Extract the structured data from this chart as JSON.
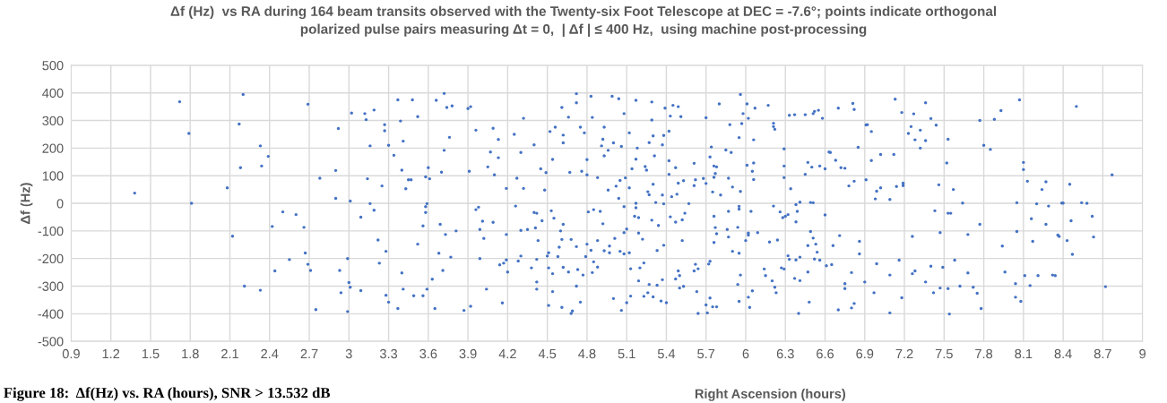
{
  "chart_data": {
    "type": "scatter",
    "title": "Δf (Hz)  vs RA during 164 beam transits observed with the Twenty-six Foot Telescope at DEC = -7.6°; points indicate orthogonal\npolarized pulse pairs measuring Δt = 0,  | Δf | ≤ 400 Hz,  using machine post-processing",
    "xlabel": "Right Ascension (hours)",
    "ylabel": "Δf (Hz)",
    "annotations": [
      "Figure 18:  Δf(Hz) vs. RA (hours), SNR > 13.532 dB"
    ],
    "color": "#4472c4",
    "marker": "circle",
    "grid": true,
    "xlim": [
      0.9,
      9
    ],
    "ylim": [
      -500,
      500
    ],
    "xticks": [
      0.9,
      1.2,
      1.5,
      1.8,
      2.1,
      2.4,
      2.7,
      3,
      3.3,
      3.6,
      3.9,
      4.2,
      4.5,
      4.8,
      5.1,
      5.4,
      5.7,
      6,
      6.3,
      6.6,
      6.9,
      7.2,
      7.5,
      7.8,
      8.1,
      8.4,
      8.7,
      9
    ],
    "yticks": [
      -500,
      -400,
      -300,
      -200,
      -100,
      0,
      100,
      200,
      300,
      400,
      500
    ],
    "x": [
      1.38,
      1.72,
      1.79,
      1.81,
      2.08,
      2.12,
      2.17,
      2.2,
      2.18,
      2.21,
      2.33,
      2.34,
      2.39,
      2.33,
      2.42,
      2.44,
      2.5,
      2.55,
      2.6,
      2.66,
      2.67,
      2.69,
      2.69,
      2.71,
      2.75,
      2.78,
      2.9,
      2.9,
      2.92,
      2.93,
      2.94,
      2.99,
      2.99,
      3.02,
      3.0,
      3.01,
      3.01,
      3.09,
      3.09,
      3.12,
      3.13,
      3.14,
      3.16,
      3.16,
      3.19,
      3.19,
      3.22,
      3.23,
      3.25,
      3.27,
      3.27,
      3.28,
      3.28,
      3.3,
      3.3,
      3.34,
      3.37,
      3.37,
      3.39,
      3.4,
      3.4,
      3.41,
      3.41,
      3.43,
      3.45,
      3.47,
      3.48,
      3.49,
      3.52,
      3.52,
      3.56,
      3.56,
      3.58,
      3.58,
      3.59,
      3.58,
      3.59,
      3.6,
      3.61,
      3.63,
      3.65,
      3.66,
      3.68,
      3.69,
      3.7,
      3.71,
      3.72,
      3.72,
      3.73,
      3.74,
      3.76,
      3.77,
      3.78,
      3.81,
      3.87,
      3.9,
      3.91,
      3.92,
      3.92,
      3.96,
      3.96,
      3.98,
      3.99,
      3.99,
      4.01,
      4.02,
      4.04,
      4.05,
      4.07,
      4.09,
      4.09,
      4.1,
      4.13,
      4.13,
      4.14,
      4.16,
      4.17,
      4.19,
      4.19,
      4.19,
      4.2,
      4.25,
      4.26,
      4.27,
      4.28,
      4.3,
      4.3,
      4.3,
      4.32,
      4.32,
      4.35,
      4.38,
      4.4,
      4.4,
      4.41,
      4.42,
      4.42,
      4.42,
      4.42,
      4.43,
      4.45,
      4.46,
      4.48,
      4.49,
      4.5,
      4.51,
      4.51,
      4.51,
      4.52,
      4.53,
      4.54,
      4.54,
      4.54,
      4.55,
      4.56,
      4.58,
      4.59,
      4.6,
      4.61,
      4.61,
      4.61,
      4.62,
      4.62,
      4.62,
      4.62,
      4.66,
      4.66,
      4.67,
      4.68,
      4.68,
      4.69,
      4.72,
      4.72,
      4.72,
      4.72,
      4.73,
      4.75,
      4.75,
      4.76,
      4.77,
      4.78,
      4.79,
      4.8,
      4.8,
      4.8,
      4.81,
      4.83,
      4.83,
      4.84,
      4.84,
      4.85,
      4.85,
      4.88,
      4.88,
      4.88,
      4.9,
      4.91,
      4.92,
      4.92,
      4.93,
      4.93,
      4.93,
      4.96,
      4.96,
      4.97,
      4.97,
      4.99,
      5.0,
      5.0,
      5.01,
      5.02,
      5.04,
      5.04,
      5.05,
      5.05,
      5.06,
      5.06,
      5.08,
      5.08,
      5.08,
      5.08,
      5.09,
      5.1,
      5.1,
      5.12,
      5.12,
      5.12,
      5.13,
      5.13,
      5.14,
      5.17,
      5.18,
      5.17,
      5.17,
      5.17,
      5.16,
      5.19,
      5.19,
      5.22,
      5.2,
      5.23,
      5.19,
      5.23,
      5.24,
      5.25,
      5.27,
      5.26,
      5.27,
      5.27,
      5.26,
      5.29,
      5.29,
      5.3,
      5.29,
      5.3,
      5.31,
      5.3,
      5.32,
      5.33,
      5.33,
      5.34,
      5.37,
      5.36,
      5.37,
      5.37,
      5.38,
      5.38,
      5.38,
      5.39,
      5.4,
      5.42,
      5.42,
      5.42,
      5.43,
      5.43,
      5.44,
      5.45,
      5.47,
      5.47,
      5.47,
      5.48,
      5.49,
      5.49,
      5.49,
      5.5,
      5.5,
      5.51,
      5.52,
      5.52,
      5.53,
      5.53,
      5.54,
      5.57,
      5.61,
      5.61,
      5.61,
      5.62,
      5.62,
      5.63,
      5.64,
      5.64,
      5.68,
      5.7,
      5.7,
      5.7,
      5.71,
      5.72,
      5.73,
      5.73,
      5.73,
      5.74,
      5.75,
      5.76,
      5.76,
      5.76,
      5.76,
      5.77,
      5.75,
      5.78,
      5.77,
      5.78,
      5.78,
      5.8,
      5.81,
      5.85,
      5.86,
      5.87,
      5.87,
      5.87,
      5.88,
      5.89,
      5.9,
      5.9,
      5.94,
      5.94,
      5.95,
      5.95,
      5.95,
      5.95,
      5.95,
      5.96,
      5.96,
      5.96,
      5.97,
      5.98,
      6.0,
      6.01,
      6.01,
      6.02,
      6.02,
      6.02,
      6.02,
      6.03,
      6.04,
      6.05,
      6.05,
      6.06,
      6.06,
      6.06,
      6.07,
      6.09,
      6.14,
      6.15,
      6.17,
      6.18,
      6.2,
      6.21,
      6.21,
      6.21,
      6.22,
      6.22,
      6.23,
      6.24,
      6.26,
      6.27,
      6.28,
      6.29,
      6.29,
      6.29,
      6.29,
      6.3,
      6.32,
      6.33,
      6.34,
      6.32,
      6.33,
      6.37,
      6.37,
      6.38,
      6.38,
      6.38,
      6.39,
      6.4,
      6.41,
      6.41,
      6.41,
      6.45,
      6.45,
      6.47,
      6.47,
      6.47,
      6.48,
      6.49,
      6.49,
      6.5,
      6.51,
      6.51,
      6.51,
      6.52,
      6.52,
      6.53,
      6.54,
      6.55,
      6.56,
      6.56,
      6.58,
      6.6,
      6.6,
      6.61,
      6.63,
      6.64,
      6.65,
      6.66,
      6.68,
      6.7,
      6.7,
      6.71,
      6.72,
      6.75,
      6.75,
      6.75,
      6.78,
      6.8,
      6.8,
      6.81,
      6.82,
      6.82,
      6.82,
      6.85,
      6.86,
      6.86,
      6.9,
      6.91,
      6.91,
      6.92,
      6.95,
      6.95,
      6.97,
      6.98,
      6.99,
      6.99,
      7.02,
      7.02,
      7.09,
      7.09,
      7.09,
      7.12,
      7.13,
      7.14,
      7.16,
      7.18,
      7.18,
      7.19,
      7.19,
      7.26,
      7.26,
      7.27,
      7.28,
      7.23,
      7.25,
      7.28,
      7.32,
      7.32,
      7.36,
      7.36,
      7.36,
      7.4,
      7.4,
      7.42,
      7.43,
      7.44,
      7.46,
      7.47,
      7.47,
      7.49,
      7.52,
      7.53,
      7.53,
      7.55,
      7.53,
      7.54,
      7.57,
      7.58,
      7.62,
      7.64,
      7.68,
      7.68,
      7.72,
      7.75,
      7.77,
      7.77,
      7.78,
      7.8,
      7.85,
      7.88,
      7.93,
      7.94,
      7.96,
      8.04,
      8.04,
      8.05,
      8.05,
      8.07,
      8.08,
      8.1,
      8.1,
      8.11,
      8.13,
      8.15,
      8.16,
      8.17,
      8.2,
      8.21,
      8.24,
      8.27,
      8.27,
      8.29,
      8.32,
      8.34,
      8.36,
      8.37,
      8.39,
      8.4,
      8.43,
      8.45,
      8.46,
      8.47,
      8.5,
      8.54,
      8.58,
      8.62,
      8.63,
      8.72,
      8.77
    ],
    "values": [
      37,
      368,
      253,
      0,
      56,
      -119,
      287,
      394,
      129,
      -300,
      208,
      135,
      170,
      -315,
      -84,
      -245,
      -31,
      -204,
      -41,
      -87,
      -180,
      359,
      -221,
      -243,
      -385,
      91,
      119,
      18,
      271,
      -243,
      -324,
      -392,
      -200,
      327,
      -287,
      -304,
      8,
      -316,
      -50,
      325,
      303,
      89,
      208,
      -1,
      -25,
      338,
      -133,
      -217,
      63,
      285,
      263,
      -174,
      -333,
      210,
      -358,
      174,
      375,
      -381,
      298,
      120,
      -252,
      225,
      -311,
      53,
      85,
      85,
      375,
      -335,
      314,
      -148,
      -335,
      -82,
      -33,
      -12,
      -1,
      96,
      -311,
      129,
      89,
      -275,
      -381,
      373,
      -181,
      -76,
      113,
      -243,
      192,
      398,
      -113,
      347,
      239,
      -195,
      353,
      -100,
      -388,
      343,
      116,
      350,
      -373,
      265,
      -23,
      -14,
      -200,
      -95,
      -65,
      -127,
      -311,
      132,
      186,
      272,
      -69,
      103,
      231,
      165,
      -223,
      -361,
      -217,
      54,
      -113,
      -205,
      -249,
      250,
      -10,
      91,
      -209,
      -191,
      -98,
      184,
      54,
      308,
      -95,
      -234,
      212,
      -33,
      -89,
      -203,
      -36,
      -285,
      -311,
      -135,
      125,
      -63,
      48,
      111,
      -191,
      -179,
      -370,
      -234,
      260,
      -27,
      -255,
      -320,
      159,
      -54,
      276,
      -193,
      -159,
      -100,
      347,
      -131,
      -377,
      -76,
      247,
      219,
      -232,
      -249,
      312,
      112,
      -131,
      -399,
      -390,
      -157,
      397,
      364,
      -300,
      -240,
      -358,
      276,
      116,
      -260,
      255,
      -193,
      103,
      158,
      -148,
      -31,
      388,
      -170,
      311,
      -251,
      -23,
      -212,
      -135,
      93,
      -231,
      -29,
      208,
      232,
      -74,
      276,
      -172,
      172,
      192,
      48,
      -155,
      -179,
      388,
      219,
      -345,
      -127,
      62,
      379,
      18,
      -174,
      83,
      -388,
      206,
      325,
      -12,
      -106,
      -183,
      92,
      -360,
      -93,
      255,
      56,
      -179,
      -237,
      -336,
      125,
      373,
      200,
      160,
      0,
      -16,
      -47,
      -52,
      -108,
      -130,
      -234,
      -216,
      -281,
      -337,
      133,
      120,
      220,
      42,
      31,
      -294,
      -324,
      367,
      302,
      244,
      -61,
      -339,
      172,
      69,
      3,
      -171,
      -297,
      -80,
      -277,
      -354,
      212,
      30,
      -2,
      -152,
      246,
      345,
      -360,
      154,
      261,
      105,
      316,
      -49,
      24,
      355,
      129,
      -274,
      -68,
      33,
      73,
      -245,
      350,
      -262,
      -307,
      314,
      -135,
      -60,
      -301,
      82,
      -36,
      -1,
      64,
      145,
      -245,
      -221,
      85,
      -320,
      -399,
      -237,
      90,
      310,
      72,
      -368,
      -397,
      -220,
      -210,
      -343,
      168,
      204,
      41,
      135,
      -47,
      -142,
      94,
      108,
      -375,
      -375,
      -88,
      -110,
      132,
      360,
      30,
      193,
      -95,
      91,
      -29,
      -122,
      285,
      184,
      59,
      -174,
      -294,
      -87,
      -11,
      -21,
      238,
      -181,
      -355,
      -260,
      394,
      43,
      289,
      325,
      -135,
      360,
      138,
      -108,
      -115,
      308,
      -340,
      -377,
      -29,
      116,
      -317,
      146,
      86,
      230,
      345,
      -106,
      -238,
      -262,
      355,
      -140,
      -281,
      290,
      -10,
      278,
      268,
      -304,
      -324,
      -133,
      -31,
      -234,
      -52,
      197,
      -238,
      135,
      93,
      -47,
      -41,
      319,
      53,
      -190,
      -203,
      321,
      -272,
      -205,
      -67,
      -5,
      -29,
      -399,
      4,
      -195,
      -280,
      105,
      321,
      148,
      -153,
      -249,
      -358,
      -102,
      3,
      131,
      -126,
      325,
      2,
      333,
      -202,
      -148,
      -177,
      337,
      135,
      -206,
      308,
      -42,
      125,
      -226,
      186,
      184,
      -222,
      -153,
      156,
      345,
      -386,
      -117,
      129,
      127,
      -309,
      -291,
      63,
      -379,
      -251,
      362,
      80,
      340,
      -363,
      203,
      -138,
      -183,
      -285,
      85,
      284,
      285,
      260,
      155,
      -324,
      16,
      -219,
      44,
      56,
      177,
      14,
      -260,
      -397,
      177,
      377,
      61,
      -206,
      329,
      -342,
      64,
      73,
      -120,
      -255,
      324,
      -245,
      253,
      278,
      230,
      265,
      200,
      227,
      -285,
      364,
      307,
      -228,
      -324,
      -27,
      283,
      67,
      -106,
      -307,
      -232,
      146,
      232,
      -36,
      -36,
      -309,
      -401,
      50,
      -206,
      -300,
      1,
      -113,
      -252,
      -304,
      -326,
      300,
      -76,
      -381,
      210,
      195,
      304,
      336,
      -155,
      -249,
      -291,
      -340,
      2,
      -102,
      375,
      -355,
      148,
      122,
      -262,
      80,
      -298,
      -56,
      -138,
      -2,
      -262,
      50,
      78,
      -76,
      -10,
      -260,
      -262,
      -115,
      -120,
      1,
      1,
      -135,
      69,
      -63,
      -185,
      351,
      2,
      0,
      -47,
      -122,
      -302,
      103
    ]
  }
}
